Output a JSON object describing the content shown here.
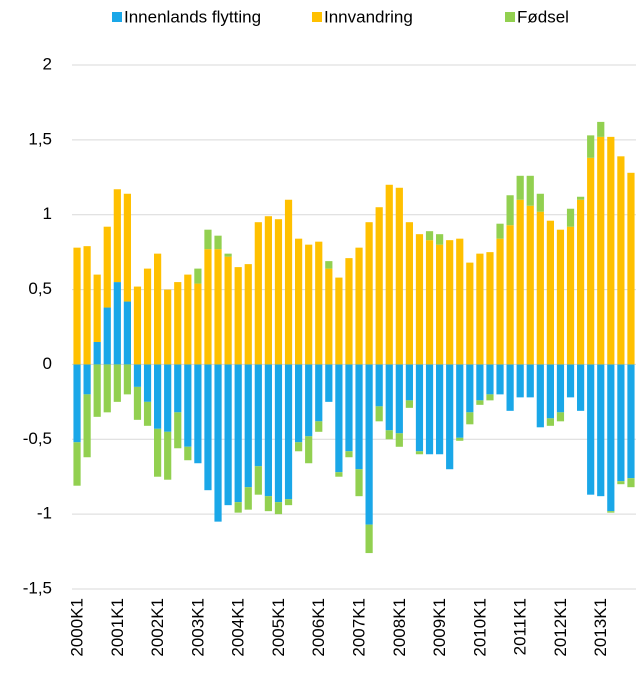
{
  "chart_data": {
    "type": "bar",
    "stacked": true,
    "categories": [
      "2000K1",
      null,
      null,
      null,
      "2001K1",
      null,
      null,
      null,
      "2002K1",
      null,
      null,
      null,
      "2003K1",
      null,
      null,
      null,
      "2004K1",
      null,
      null,
      null,
      "2005K1",
      null,
      null,
      null,
      "2006K1",
      null,
      null,
      null,
      "2007K1",
      null,
      null,
      null,
      "2008K1",
      null,
      null,
      null,
      "2009K1",
      null,
      null,
      null,
      "2010K1",
      null,
      null,
      null,
      "2011K1",
      null,
      null,
      null,
      "2012K1",
      null,
      null,
      null,
      "2013K1",
      null,
      null,
      null
    ],
    "series": [
      {
        "name": "Innenlands flytting",
        "color": "#1aa7e8",
        "values": [
          -0.52,
          -0.2,
          0.15,
          0.38,
          0.55,
          0.42,
          -0.15,
          -0.25,
          -0.43,
          -0.45,
          -0.32,
          -0.55,
          -0.66,
          -0.84,
          -1.05,
          -0.94,
          -0.92,
          -0.82,
          -0.68,
          -0.88,
          -0.92,
          -0.9,
          -0.52,
          -0.48,
          -0.38,
          -0.25,
          -0.72,
          -0.58,
          -0.7,
          -1.07,
          -0.28,
          -0.44,
          -0.46,
          -0.24,
          -0.58,
          -0.6,
          -0.6,
          -0.7,
          -0.49,
          -0.32,
          -0.24,
          -0.2,
          -0.2,
          -0.31,
          -0.22,
          -0.22,
          -0.42,
          -0.36,
          -0.32,
          -0.22,
          -0.31,
          -0.87,
          -0.88,
          -0.98,
          -0.78,
          -0.76
        ]
      },
      {
        "name": "Innvandring",
        "color": "#ffc000",
        "values": [
          0.78,
          0.79,
          0.45,
          0.54,
          0.62,
          0.72,
          0.52,
          0.64,
          0.74,
          0.5,
          0.55,
          0.6,
          0.54,
          0.77,
          0.77,
          0.72,
          0.65,
          0.67,
          0.95,
          0.99,
          0.97,
          1.1,
          0.84,
          0.8,
          0.82,
          0.64,
          0.58,
          0.71,
          0.78,
          0.95,
          1.05,
          1.2,
          1.18,
          0.95,
          0.87,
          0.83,
          0.8,
          0.83,
          0.84,
          0.68,
          0.74,
          0.75,
          0.84,
          0.93,
          1.1,
          1.06,
          1.02,
          0.96,
          0.9,
          0.92,
          1.1,
          1.38,
          1.52,
          1.52,
          1.39,
          1.28
        ]
      },
      {
        "name": "Fødsel",
        "color": "#92d050",
        "values": [
          -0.29,
          -0.42,
          -0.35,
          -0.32,
          -0.25,
          -0.2,
          -0.22,
          -0.16,
          -0.32,
          -0.32,
          -0.24,
          -0.09,
          0.1,
          0.13,
          0.09,
          0.02,
          -0.07,
          -0.15,
          -0.19,
          -0.1,
          -0.08,
          -0.04,
          -0.06,
          -0.18,
          -0.07,
          0.05,
          -0.03,
          -0.04,
          -0.18,
          -0.19,
          -0.1,
          -0.06,
          -0.09,
          -0.05,
          -0.02,
          0.06,
          0.07,
          0,
          -0.02,
          -0.08,
          -0.03,
          -0.04,
          0.1,
          0.2,
          0.16,
          0.2,
          0.12,
          -0.05,
          -0.06,
          0.12,
          0.02,
          0.15,
          0.1,
          -0.01,
          -0.02,
          -0.06
        ]
      }
    ],
    "ylim": [
      -1.5,
      2
    ],
    "yticks": [
      {
        "value": -1.5,
        "label": "-1,5"
      },
      -1,
      {
        "value": -0.5,
        "label": "-0,5"
      },
      0,
      {
        "value": 0.5,
        "label": "0,5"
      },
      1,
      {
        "value": 1.5,
        "label": "1,5"
      },
      2
    ],
    "grid": true,
    "legend": "top"
  }
}
